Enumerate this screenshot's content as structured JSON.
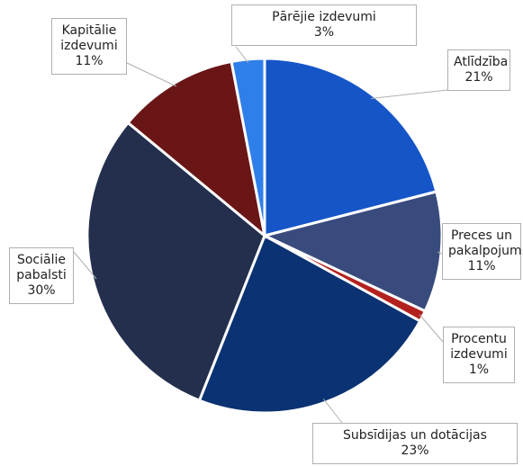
{
  "chart_data": {
    "type": "pie",
    "categories": [
      "Atlīdzība",
      "Preces un pakalpojum",
      "Procentu izdevumi",
      "Subsīdijas un dotācijas",
      "Sociālie pabalsti",
      "Kapitālie izdevumi",
      "Pārējie izdevumi"
    ],
    "values": [
      21,
      11,
      1,
      23,
      30,
      11,
      3
    ],
    "value_labels": [
      "21%",
      "11%",
      "1%",
      "23%",
      "30%",
      "11%",
      "3%"
    ],
    "colors": [
      "#1555c8",
      "#394b7d",
      "#b3211f",
      "#0b3272",
      "#232f4d",
      "#6a1516",
      "#2f7fea"
    ]
  }
}
